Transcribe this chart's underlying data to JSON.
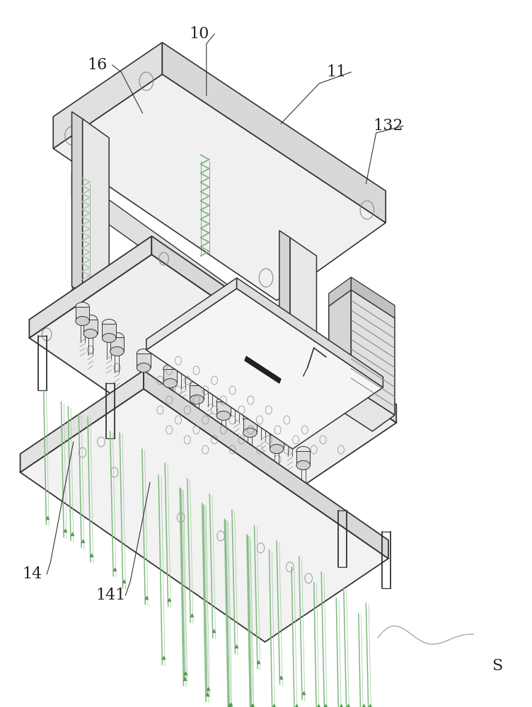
{
  "figure_width": 7.52,
  "figure_height": 10.0,
  "dpi": 100,
  "bg_color": "#ffffff",
  "line_color": "#555555",
  "line_color_dark": "#333333",
  "line_color_light": "#888888",
  "green_color": "#7fb87f",
  "label_fontsize": 16,
  "label_color": "#222222"
}
